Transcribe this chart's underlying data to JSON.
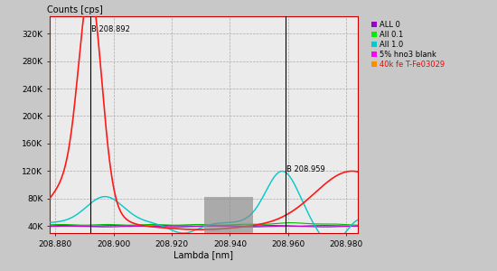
{
  "xmin": 208.878,
  "xmax": 208.984,
  "ymin": 30000,
  "ymax": 345000,
  "yticks": [
    40000,
    80000,
    120000,
    160000,
    200000,
    240000,
    280000,
    320000
  ],
  "ytick_labels": [
    "40K",
    "80K",
    "120K",
    "160K",
    "200K",
    "240K",
    "280K",
    "320K"
  ],
  "xticks": [
    208.88,
    208.9,
    208.92,
    208.94,
    208.96,
    208.98
  ],
  "xtick_labels": [
    "208.880",
    "208.900",
    "208.920",
    "208.940",
    "208.960",
    "208.980"
  ],
  "xlabel": "Lambda [nm]",
  "ylabel": "Counts [cps]",
  "vline1": 208.892,
  "vline2": 208.959,
  "vline1_label": "B 208.892",
  "vline2_label": "B 208.959",
  "gray_rect_x1": 208.931,
  "gray_rect_x2": 208.948,
  "gray_rect_y1": 30000,
  "gray_rect_y2": 83000,
  "legend_entries": [
    "ALL 0",
    "All 0.1",
    "All 1.0",
    "5% hno3 blank",
    "40k fe T-Fe03029"
  ],
  "legend_colors": [
    "#9900cc",
    "#00ee00",
    "#00cccc",
    "#ff00ff",
    "#ff8c00"
  ],
  "legend_label_colors": [
    "#000000",
    "#000000",
    "#000000",
    "#000000",
    "#ff0000"
  ],
  "bg_color": "#c8c8c8",
  "plot_bg_color": "#ebebeb",
  "grid_color": "#aaaaaa",
  "red_line_color": "#ff1818",
  "cyan_line_color": "#00c8c8",
  "green_line_color": "#00bb00",
  "blue_line_color": "#2222cc",
  "magenta_line_color": "#cc00cc"
}
